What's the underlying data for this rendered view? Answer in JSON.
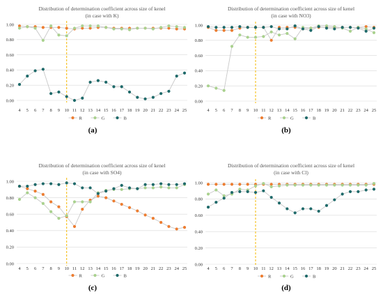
{
  "chart_data": [
    {
      "type": "line",
      "label": "(a)",
      "title": [
        "Distribution of determination coefficient across size of kenel",
        "(in case with K)"
      ],
      "x": [
        4,
        5,
        6,
        7,
        8,
        9,
        10,
        11,
        12,
        13,
        14,
        15,
        16,
        17,
        18,
        19,
        20,
        21,
        22,
        23,
        24,
        25
      ],
      "yticks": [
        "0.00",
        "0.20",
        "0.40",
        "0.60",
        "0.80",
        "1.00"
      ],
      "ylim": [
        0,
        1
      ],
      "vline": 10,
      "series": [
        {
          "name": "R",
          "color": "#ed7d31",
          "values": [
            0.98,
            0.97,
            0.97,
            0.96,
            0.96,
            0.96,
            0.95,
            0.94,
            0.95,
            0.95,
            0.96,
            0.96,
            0.95,
            0.95,
            0.95,
            0.95,
            0.95,
            0.95,
            0.95,
            0.95,
            0.94,
            0.94
          ]
        },
        {
          "name": "G",
          "color": "#a9d18e",
          "values": [
            0.95,
            0.97,
            0.95,
            0.79,
            0.98,
            0.86,
            0.85,
            0.95,
            0.98,
            0.98,
            0.98,
            0.96,
            0.94,
            0.94,
            0.93,
            0.95,
            0.95,
            0.94,
            0.96,
            0.98,
            0.97,
            0.96
          ]
        },
        {
          "name": "B",
          "color": "#1f6a6a",
          "values": [
            0.21,
            0.32,
            0.39,
            0.41,
            0.09,
            0.11,
            0.05,
            0.0,
            0.03,
            0.24,
            0.26,
            0.24,
            0.18,
            0.18,
            0.11,
            0.04,
            0.02,
            0.04,
            0.09,
            0.12,
            0.32,
            0.36
          ]
        }
      ]
    },
    {
      "type": "line",
      "label": "(b)",
      "title": [
        "Distribution of determination coefficient across size of kenel",
        "(in case with NO3)"
      ],
      "x": [
        4,
        5,
        6,
        7,
        8,
        9,
        10,
        11,
        12,
        13,
        14,
        15,
        16,
        17,
        18,
        19,
        20,
        21,
        22,
        23,
        24,
        25
      ],
      "yticks": [
        "0.00",
        "0.20",
        "0.40",
        "0.60",
        "0.80",
        "1.00"
      ],
      "ylim": [
        0,
        1
      ],
      "vline": 10,
      "series": [
        {
          "name": "R",
          "color": "#ed7d31",
          "values": [
            0.97,
            0.93,
            0.93,
            0.93,
            0.96,
            0.97,
            0.97,
            0.97,
            0.8,
            0.97,
            0.97,
            0.97,
            0.95,
            0.96,
            0.97,
            0.97,
            0.97,
            0.97,
            0.97,
            0.97,
            0.98,
            0.97
          ]
        },
        {
          "name": "G",
          "color": "#a9d18e",
          "values": [
            0.2,
            0.17,
            0.14,
            0.72,
            0.87,
            0.84,
            0.84,
            0.85,
            0.91,
            0.87,
            0.89,
            0.82,
            0.97,
            0.96,
            0.99,
            0.99,
            0.98,
            0.96,
            0.92,
            0.97,
            0.95,
            0.9
          ]
        },
        {
          "name": "B",
          "color": "#1f6a6a",
          "values": [
            0.98,
            0.97,
            0.97,
            0.97,
            0.98,
            0.97,
            0.97,
            0.97,
            0.98,
            0.95,
            0.95,
            0.99,
            0.95,
            0.93,
            0.98,
            0.96,
            0.95,
            0.97,
            0.97,
            0.96,
            0.92,
            0.96
          ]
        }
      ]
    },
    {
      "type": "line",
      "label": "(c)",
      "title": [
        "Distribution of determination coefficient across size of kenel",
        "(in case with SO4)"
      ],
      "x": [
        4,
        5,
        6,
        7,
        8,
        9,
        10,
        11,
        12,
        13,
        14,
        15,
        16,
        17,
        18,
        19,
        20,
        21,
        22,
        23,
        24,
        25
      ],
      "yticks": [
        "0.00",
        "0.20",
        "0.40",
        "0.60",
        "0.80",
        "1.00"
      ],
      "ylim": [
        0,
        1
      ],
      "vline": 10,
      "series": [
        {
          "name": "R",
          "color": "#ed7d31",
          "values": [
            0.94,
            0.91,
            0.88,
            0.84,
            0.75,
            0.69,
            0.57,
            0.45,
            0.66,
            0.77,
            0.82,
            0.8,
            0.76,
            0.72,
            0.68,
            0.64,
            0.59,
            0.55,
            0.5,
            0.45,
            0.42,
            0.44
          ]
        },
        {
          "name": "G",
          "color": "#a9d18e",
          "values": [
            0.78,
            0.86,
            0.8,
            0.73,
            0.63,
            0.55,
            0.58,
            0.75,
            0.75,
            0.75,
            0.86,
            0.89,
            0.9,
            0.9,
            0.91,
            0.91,
            0.92,
            0.92,
            0.93,
            0.92,
            0.92,
            0.96
          ]
        },
        {
          "name": "B",
          "color": "#1f6a6a",
          "values": [
            0.94,
            0.94,
            0.96,
            0.97,
            0.97,
            0.96,
            0.98,
            0.97,
            0.92,
            0.92,
            0.85,
            0.88,
            0.91,
            0.95,
            0.92,
            0.91,
            0.96,
            0.96,
            0.97,
            0.96,
            0.96,
            0.97
          ]
        }
      ]
    },
    {
      "type": "line",
      "label": "(d)",
      "title": [
        "Distribution of determination coefficient across size of kenel",
        "(in case with Cl)"
      ],
      "x": [
        4,
        5,
        6,
        7,
        8,
        9,
        10,
        11,
        12,
        13,
        14,
        15,
        16,
        17,
        18,
        19,
        20,
        21,
        22,
        23,
        24,
        25
      ],
      "yticks": [
        "0.00",
        "0.20",
        "0.40",
        "0.60",
        "0.80",
        "1.00"
      ],
      "ylim": [
        0,
        1
      ],
      "vline": 10,
      "series": [
        {
          "name": "R",
          "color": "#ed7d31",
          "values": [
            0.98,
            0.98,
            0.98,
            0.98,
            0.98,
            0.98,
            0.98,
            0.98,
            0.98,
            0.98,
            0.98,
            0.98,
            0.98,
            0.98,
            0.98,
            0.98,
            0.98,
            0.98,
            0.98,
            0.98,
            0.98,
            0.98
          ]
        },
        {
          "name": "G",
          "color": "#a9d18e",
          "values": [
            0.86,
            0.91,
            0.84,
            0.86,
            0.92,
            0.91,
            0.96,
            0.99,
            0.95,
            0.96,
            0.97,
            0.97,
            0.97,
            0.97,
            0.97,
            0.97,
            0.97,
            0.97,
            0.97,
            0.97,
            0.97,
            0.99
          ]
        },
        {
          "name": "B",
          "color": "#1f6a6a",
          "values": [
            0.7,
            0.76,
            0.81,
            0.88,
            0.89,
            0.89,
            0.88,
            0.9,
            0.82,
            0.75,
            0.68,
            0.63,
            0.68,
            0.68,
            0.65,
            0.72,
            0.79,
            0.86,
            0.89,
            0.89,
            0.91,
            0.92
          ]
        }
      ]
    }
  ]
}
